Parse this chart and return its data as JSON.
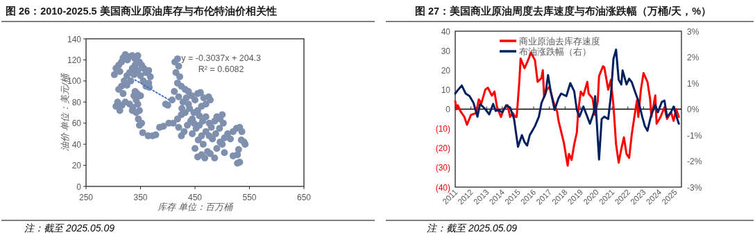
{
  "chart_data": [
    {
      "type": "scatter",
      "title": "图 26：2010-2025.5 美国商业原油库存与布伦特油价相关性",
      "xlabel": "库存 单位：百万桶",
      "ylabel": "油价 单位：美元/桶",
      "annotations": [
        "y = -0.3037x + 204.3",
        "R² = 0.6082",
        "注：截至 2025.05.09"
      ],
      "xlim": [
        250,
        650
      ],
      "xticks": [
        250,
        350,
        450,
        550,
        650
      ],
      "ylim": [
        0,
        140
      ],
      "yticks": [
        0,
        20,
        40,
        60,
        80,
        100,
        120,
        140
      ],
      "marker": "circle",
      "series": [
        {
          "type": "scatter",
          "color": "#7f8fae",
          "x": [
            302,
            305,
            310,
            312,
            315,
            318,
            322,
            326,
            330,
            335,
            340,
            345,
            348,
            352,
            356,
            360,
            365,
            368,
            365,
            360,
            355,
            350,
            345,
            340,
            335,
            330,
            325,
            320,
            315,
            310,
            318,
            325,
            332,
            338,
            366,
            305,
            308,
            312,
            316,
            322,
            330,
            336,
            338,
            340,
            342,
            345,
            348,
            344,
            350,
            335,
            342,
            346,
            348,
            352,
            354,
            364,
            372,
            378,
            385,
            392,
            402,
            396,
            400,
            413,
            418,
            420,
            415,
            422,
            418,
            425,
            412,
            408,
            420,
            428,
            432,
            438,
            444,
            450,
            455,
            460,
            466,
            475,
            478,
            470,
            462,
            455,
            448,
            440,
            432,
            425,
            418,
            410,
            420,
            425,
            430,
            436,
            442,
            448,
            452,
            458,
            464,
            470,
            476,
            480,
            486,
            490,
            496,
            500,
            502,
            495,
            488,
            482,
            476,
            470,
            462,
            456,
            450,
            455,
            462,
            468,
            473,
            478,
            486,
            490,
            496,
            504,
            510,
            515,
            520,
            526,
            532,
            536,
            540,
            542,
            535,
            530,
            528,
            532,
            528,
            520,
            504,
            500,
            465,
            445,
            438,
            426,
            434,
            445,
            458
          ],
          "values": [
            106,
            112,
            115,
            109,
            118,
            122,
            125,
            120,
            123,
            124,
            121,
            124,
            118,
            115,
            112,
            108,
            110,
            104,
            98,
            95,
            100,
            105,
            110,
            115,
            112,
            108,
            105,
            100,
            95,
            92,
            88,
            96,
            100,
            106,
            94,
            76,
            80,
            72,
            77,
            80,
            78,
            75,
            86,
            90,
            82,
            78,
            72,
            88,
            86,
            72,
            70,
            64,
            58,
            60,
            51,
            48,
            48,
            49,
            56,
            57,
            60,
            78,
            77,
            118,
            121,
            114,
            108,
            104,
            98,
            95,
            90,
            82,
            85,
            80,
            92,
            90,
            86,
            82,
            88,
            89,
            84,
            85,
            82,
            78,
            76,
            72,
            70,
            74,
            70,
            68,
            64,
            60,
            56,
            48,
            52,
            58,
            62,
            60,
            55,
            58,
            62,
            66,
            60,
            56,
            62,
            66,
            64,
            68,
            60,
            55,
            50,
            45,
            48,
            52,
            48,
            44,
            36,
            28,
            30,
            27,
            33,
            31,
            27,
            36,
            42,
            46,
            50,
            45,
            52,
            55,
            56,
            52,
            42,
            40,
            44,
            35,
            30,
            23,
            22,
            29,
            32,
            40,
            40,
            64,
            78,
            74,
            84,
            50,
            67
          ]
        },
        {
          "type": "line",
          "color": "#4472c4",
          "line_style": "dotted",
          "marker": "none",
          "x": [
            340,
            402
          ],
          "values": [
            101.0,
            82.2
          ]
        }
      ]
    },
    {
      "type": "line",
      "title": "图 27：美国商业原油周度去库速度与布油涨跌幅（万桶/天，%）",
      "annotations": [
        "注：截至 2025.05.09"
      ],
      "xlim": [
        "2011-01",
        "2025-06"
      ],
      "xticks": [
        "2011",
        "2012",
        "2013",
        "2014",
        "2015",
        "2016",
        "2017",
        "2018",
        "2019",
        "2020",
        "2021",
        "2022",
        "2023",
        "2024",
        "2025"
      ],
      "ylim": [
        -40,
        40
      ],
      "yticks": [
        40,
        30,
        20,
        10,
        0,
        {
          "value": -10,
          "label": "(10)"
        },
        {
          "value": -20,
          "label": "(20)"
        },
        {
          "value": -30,
          "label": "(30)"
        },
        {
          "value": -40,
          "label": "(40)"
        }
      ],
      "y2lim": [
        -3,
        3
      ],
      "y2ticks": [
        {
          "value": 3,
          "label": "3%"
        },
        {
          "value": 2,
          "label": "2%"
        },
        {
          "value": 1,
          "label": "1%"
        },
        {
          "value": 0,
          "label": "0%"
        },
        {
          "value": -1,
          "label": "-1%"
        },
        {
          "value": -2,
          "label": "-2%"
        },
        {
          "value": -3,
          "label": "-3%"
        }
      ],
      "legend": "top left",
      "marker": "none",
      "series": [
        {
          "name": "商业原油去库存速度",
          "color": "#ff0000",
          "x": [
            "2011-01",
            "2011-02",
            "2011-03",
            "2011-05",
            "2011-08",
            "2011-10",
            "2012-01",
            "2012-05",
            "2012-07",
            "2012-09",
            "2012-12",
            "2013-02",
            "2013-05",
            "2013-07",
            "2013-09",
            "2013-12",
            "2014-02",
            "2014-05",
            "2014-07",
            "2014-09",
            "2014-11",
            "2014-12",
            "2015-02",
            "2015-03",
            "2015-06",
            "2015-08",
            "2015-11",
            "2016-02",
            "2016-04",
            "2016-07",
            "2016-08",
            "2016-09",
            "2016-11",
            "2017-01",
            "2017-04",
            "2017-07",
            "2017-08",
            "2017-12",
            "2018-03",
            "2018-04",
            "2018-06",
            "2018-08",
            "2018-10",
            "2018-11",
            "2019-01",
            "2019-03",
            "2019-06",
            "2019-07",
            "2019-10",
            "2019-12",
            "2020-02",
            "2020-03",
            "2020-06",
            "2020-07",
            "2020-10",
            "2020-12",
            "2021-02",
            "2021-04",
            "2021-06",
            "2021-08",
            "2021-10",
            "2021-12",
            "2022-02",
            "2022-04",
            "2022-06",
            "2022-08",
            "2022-09",
            "2022-11",
            "2023-01",
            "2023-04",
            "2023-06",
            "2023-07",
            "2023-10",
            "2023-11",
            "2024-02",
            "2024-05",
            "2024-07",
            "2024-10",
            "2024-12",
            "2025-02",
            "2025-04"
          ],
          "values": [
            4,
            0,
            2,
            -1,
            -4,
            -8,
            -3,
            -2,
            5,
            3,
            10,
            11,
            7,
            9,
            1,
            -4,
            0,
            2,
            -4,
            -2,
            -4,
            -4,
            14,
            26,
            21,
            24,
            29,
            25,
            14,
            16,
            20,
            6,
            10,
            11.5,
            4,
            -1.5,
            -6,
            -17,
            -29,
            -23,
            -26,
            -18,
            -12,
            -1.5,
            9,
            7,
            14,
            8,
            5.5,
            -3,
            4,
            17,
            22,
            21.5,
            10,
            15,
            2,
            -18,
            -27.5,
            -20.5,
            -14.5,
            -23,
            -25,
            -13,
            -4,
            4.5,
            -4,
            10,
            18.5,
            14,
            5.5,
            -4,
            7,
            -7.5,
            -4,
            1,
            -5,
            -1.5,
            -6,
            0,
            -4
          ]
        },
        {
          "name": "布油涨跌幅（右）",
          "color": "#002060",
          "axis": "y2",
          "x": [
            "2011-01",
            "2011-03",
            "2011-06",
            "2011-09",
            "2011-12",
            "2012-03",
            "2012-06",
            "2012-08",
            "2012-12",
            "2013-03",
            "2013-06",
            "2013-08",
            "2013-10",
            "2014-01",
            "2014-04",
            "2014-07",
            "2014-10",
            "2015-01",
            "2015-04",
            "2015-06",
            "2015-08",
            "2015-10",
            "2015-12",
            "2016-02",
            "2016-05",
            "2016-07",
            "2016-10",
            "2016-12",
            "2017-02",
            "2017-05",
            "2017-08",
            "2017-10",
            "2018-02",
            "2018-05",
            "2018-08",
            "2018-10",
            "2018-12",
            "2019-03",
            "2019-06",
            "2019-08",
            "2019-11",
            "2019-12",
            "2020-01",
            "2020-03",
            "2020-05",
            "2020-07",
            "2020-10",
            "2020-12",
            "2021-02",
            "2021-04",
            "2021-06",
            "2021-08",
            "2021-09",
            "2021-12",
            "2022-02",
            "2022-04",
            "2022-07",
            "2022-09",
            "2022-12",
            "2023-02",
            "2023-04",
            "2023-07",
            "2023-10",
            "2023-12",
            "2024-03",
            "2024-05",
            "2024-07",
            "2024-10",
            "2024-12",
            "2025-02",
            "2025-04"
          ],
          "values": [
            0.6,
            0.73,
            0.91,
            0.6,
            0.5,
            0.24,
            -0.29,
            0.2,
            0,
            -0.2,
            0.2,
            -0.07,
            -0.03,
            -0.12,
            0.15,
            0.06,
            -0.38,
            -1.45,
            -1.0,
            -1.27,
            -1.4,
            -1.0,
            -0.83,
            -0.65,
            -0.29,
            0.24,
            0.6,
            1.31,
            0.69,
            -0.03,
            0.42,
            0.6,
            0.5,
            1.0,
            0.69,
            -0.03,
            -0.29,
            0.1,
            -0.29,
            -0.56,
            -0.12,
            0.5,
            -0.29,
            -1.94,
            -0.38,
            -0.29,
            -0.38,
            0.5,
            1.93,
            2.29,
            1.13,
            0.95,
            1.49,
            0.95,
            1.17,
            1.04,
            0.6,
            0.33,
            -0.29,
            -0.65,
            -0.83,
            -0.2,
            0.15,
            -0.12,
            0.28,
            0.33,
            -0.29,
            -0.12,
            0.1,
            -0.25,
            -0.56
          ]
        }
      ]
    }
  ]
}
